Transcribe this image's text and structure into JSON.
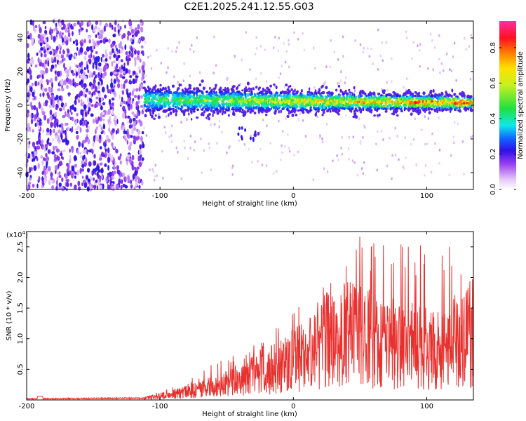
{
  "title": "C2E1.2025.241.12.55.G03",
  "chart_data": [
    {
      "type": "heatmap",
      "xlabel": "Height of straight line (km)",
      "ylabel": "Frequency (Hz)",
      "xlim": [
        -200,
        135
      ],
      "ylim": [
        -50,
        50
      ],
      "xticks": [
        -200,
        -100,
        0,
        100
      ],
      "xtick_labels": [
        "-200",
        "-100",
        "0",
        "100"
      ],
      "yticks": [
        40,
        20,
        0,
        -20,
        -40
      ],
      "ytick_labels": [
        "40",
        "20",
        "0",
        "-20",
        "-40"
      ],
      "colorbar": {
        "label": "Normalized spectral amplitude",
        "range": [
          0.0,
          0.95
        ],
        "ticks": [
          0.0,
          0.2,
          0.4,
          0.6,
          0.8
        ],
        "tick_labels": [
          "0.0",
          "0.2",
          "0.4",
          "0.6",
          "0.8"
        ]
      },
      "regions": [
        {
          "description": "scattered noise",
          "x_range": [
            -200,
            -112
          ],
          "freq_range": [
            -50,
            50
          ],
          "amplitude": 0.15
        },
        {
          "description": "signal band",
          "x_range": [
            -112,
            135
          ],
          "center_freq_start": 3,
          "center_freq_end": 1.5,
          "peak_amplitude": 0.9
        }
      ]
    },
    {
      "type": "line",
      "xlabel": "Height of straight line (km)",
      "ylabel": "SNR (10 * v/v)",
      "y_exponent_label": "(x10",
      "y_exponent": "4",
      "xlim": [
        -200,
        135
      ],
      "ylim": [
        0,
        2.75
      ],
      "xticks": [
        -200,
        -100,
        0,
        100
      ],
      "xtick_labels": [
        "-200",
        "-100",
        "0",
        "100"
      ],
      "yticks": [
        0.5,
        1.0,
        1.5,
        2.0,
        2.5
      ],
      "ytick_labels": [
        "0.5",
        "1.0",
        "1.5",
        "2.0",
        "2.5"
      ],
      "color": "#e8312e",
      "envelope": {
        "x": [
          -200,
          -112,
          -100,
          -80,
          -60,
          -40,
          -20,
          0,
          20,
          35,
          45,
          60,
          80,
          100,
          120,
          135
        ],
        "mean": [
          0.02,
          0.03,
          0.08,
          0.15,
          0.25,
          0.4,
          0.55,
          0.75,
          0.95,
          1.2,
          1.3,
          1.15,
          1.05,
          1.0,
          1.1,
          1.2
        ],
        "max": [
          0.05,
          0.06,
          0.15,
          0.3,
          0.6,
          0.8,
          1.0,
          1.5,
          1.7,
          2.6,
          2.75,
          2.65,
          2.6,
          2.5,
          2.55,
          2.0
        ]
      }
    }
  ]
}
